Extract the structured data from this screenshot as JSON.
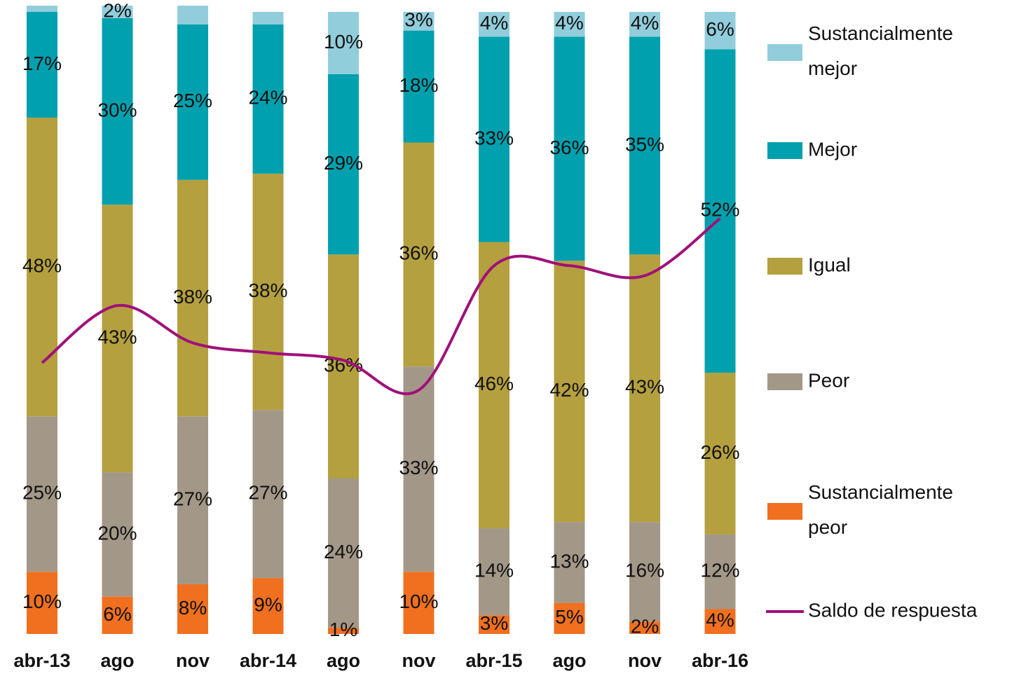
{
  "chart_data": {
    "type": "stacked-bar-line",
    "categories": [
      "abr-13",
      "ago",
      "nov",
      "abr-14",
      "ago",
      "nov",
      "abr-15",
      "ago",
      "nov",
      "abr-16"
    ],
    "ylim": [
      0,
      100
    ],
    "y2lim": [
      -125,
      125
    ],
    "legend": "right",
    "series": [
      {
        "name": "Sustancialmente peor",
        "color": "#f07020",
        "values": [
          10,
          6,
          8,
          9,
          1,
          10,
          3,
          5,
          2,
          4
        ]
      },
      {
        "name": "Peor",
        "color": "#a39888",
        "values": [
          25,
          20,
          27,
          27,
          24,
          33,
          14,
          13,
          16,
          12
        ]
      },
      {
        "name": "Igual",
        "color": "#b5a03f",
        "values": [
          48,
          43,
          38,
          38,
          36,
          36,
          46,
          42,
          43,
          26
        ]
      },
      {
        "name": "Mejor",
        "color": "#00a0ae",
        "values": [
          17,
          30,
          25,
          24,
          29,
          18,
          33,
          36,
          35,
          52
        ]
      },
      {
        "name": "Sustancialmente mejor",
        "color": "#92cddc",
        "values": [
          1,
          2,
          3,
          2,
          10,
          3,
          4,
          4,
          4,
          6
        ],
        "value_labels": [
          null,
          "2%",
          null,
          null,
          "10%",
          "3%",
          "4%",
          "4%",
          "4%",
          "6%"
        ]
      },
      {
        "name": "Saldo de respuesta",
        "color": "#a0107a",
        "axis": "y2",
        "type": "line",
        "values": [
          -16,
          7,
          -8,
          -12,
          -15,
          -27,
          23,
          23,
          19,
          42
        ]
      }
    ]
  }
}
